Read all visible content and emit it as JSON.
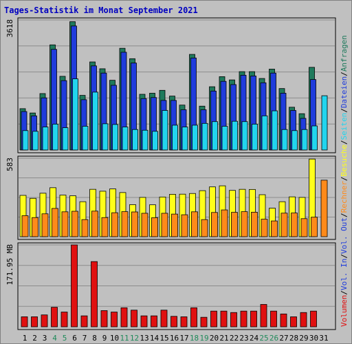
{
  "title": "Tages-Statistik im Monat September 2021",
  "chart_data": {
    "type": "bar",
    "days": [
      "1",
      "2",
      "3",
      "4",
      "5",
      "6",
      "7",
      "8",
      "9",
      "10",
      "11",
      "12",
      "13",
      "14",
      "15",
      "16",
      "17",
      "18",
      "19",
      "20",
      "21",
      "22",
      "23",
      "24",
      "25",
      "26",
      "27",
      "28",
      "29",
      "30",
      "31"
    ],
    "weekend_days": [
      "4",
      "5",
      "11",
      "12",
      "18",
      "19",
      "25",
      "26"
    ],
    "panels": [
      {
        "id": "requests",
        "max_label": "3618",
        "ylim": [
          0,
          3618
        ],
        "series": [
          {
            "name": "Anfragen",
            "color": "#1f7a5c",
            "values": [
              1150,
              1030,
              1570,
              2925,
              2050,
              3570,
              1520,
              2450,
              2260,
              1940,
              2830,
              2540,
              1550,
              1580,
              1660,
              1500,
              1250,
              2660,
              1220,
              1760,
              2040,
              1950,
              2180,
              2180,
              1990,
              2250,
              1710,
              1190,
              1010,
              2300,
              0
            ]
          },
          {
            "name": "Dateien",
            "color": "#1f3cdc",
            "values": [
              1070,
              950,
              1450,
              2800,
              1930,
              3450,
              1400,
              2340,
              2140,
              1800,
              2720,
              2420,
              1430,
              1460,
              1380,
              1380,
              1120,
              2560,
              1120,
              1640,
              1910,
              1820,
              2080,
              2060,
              1870,
              2140,
              1580,
              1100,
              880,
              1960,
              0
            ]
          },
          {
            "name": "Seiten",
            "color": "#22d5ee",
            "values": [
              540,
              520,
              640,
              720,
              620,
              1980,
              660,
              1610,
              730,
              710,
              640,
              570,
              550,
              520,
              1100,
              690,
              640,
              690,
              740,
              790,
              660,
              800,
              790,
              720,
              950,
              1090,
              570,
              540,
              570,
              670,
              1510
            ]
          }
        ]
      },
      {
        "id": "visits",
        "max_label": "583",
        "ylim": [
          0,
          583
        ],
        "series": [
          {
            "name": "Besuche",
            "color": "#ffff1a",
            "values": [
              307,
              285,
              323,
              364,
              309,
              304,
              260,
              352,
              338,
              355,
              328,
              238,
              292,
              237,
              295,
              315,
              316,
              321,
              342,
              370,
              378,
              344,
              352,
              351,
              312,
              212,
              260,
              296,
              292,
              577,
              0
            ]
          },
          {
            "name": "Rechner",
            "color": "#ff8a1a",
            "values": [
              156,
              142,
              170,
              210,
              185,
              189,
              127,
              190,
              142,
              178,
              186,
              184,
              174,
              141,
              174,
              168,
              163,
              185,
              127,
              180,
              199,
              181,
              186,
              182,
              130,
              117,
              175,
              176,
              134,
              145,
              420
            ]
          }
        ]
      },
      {
        "id": "volume",
        "max_label": "171.95 MB",
        "ylim": [
          0,
          171.95
        ],
        "series": [
          {
            "name": "Volumen",
            "color": "#e01010",
            "values": [
              21,
              21,
              25,
              41,
              31,
              172,
              23,
              137,
              34,
              31,
              40,
              35,
              23,
              23,
              35,
              22,
              21,
              40,
              20,
              33,
              33,
              30,
              33,
              33,
              47,
              33,
              27,
              21,
              30,
              33,
              0
            ]
          }
        ]
      }
    ],
    "legend": [
      "Volumen",
      "/",
      "Vol. In",
      "/",
      "Vol. Out",
      "/",
      "Rechner",
      "/",
      "Besuche",
      "/",
      "Seiten",
      "/",
      "Dateien",
      "/",
      "Anfragen"
    ],
    "legend_colors": {
      "Volumen": "#e01010",
      "Vol. In": "#1f3cdc",
      "Vol. Out": "#1f3cdc",
      "Rechner": "#ff8a1a",
      "Besuche": "#ffff1a",
      "Seiten": "#22d5ee",
      "Dateien": "#1f3cdc",
      "Anfragen": "#1f7a5c",
      "/": "#000000"
    },
    "legend_position": "right",
    "grid": true
  }
}
